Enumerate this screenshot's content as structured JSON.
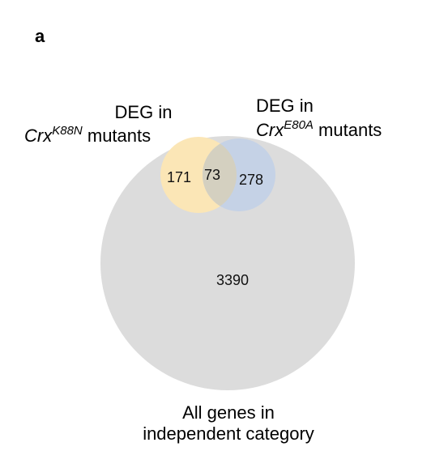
{
  "panel_label": "a",
  "colors": {
    "background_set": "#dcdcdc",
    "k88n_set": "#fbe6b6",
    "e80a_set": "#c5d2e6",
    "overlap": "#d4d0c0"
  },
  "sets": {
    "all_genes": {
      "label_line1": "All genes in",
      "label_line2": "independent category"
    },
    "k88n": {
      "label_line1": "DEG in",
      "gene": "Crx",
      "allele": "K88N",
      "suffix": "mutants"
    },
    "e80a": {
      "label_line1": "DEG in",
      "gene": "Crx",
      "allele": "E80A",
      "suffix": "mutants"
    }
  },
  "counts": {
    "k88n_only": "171",
    "overlap": "73",
    "e80a_only": "278",
    "background_only": "3390"
  }
}
